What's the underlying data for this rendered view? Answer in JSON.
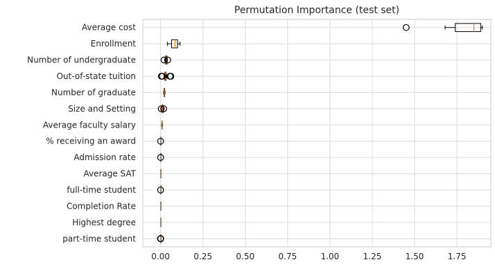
{
  "chart_data": {
    "type": "boxplot",
    "orientation": "horizontal",
    "title": "Permutation Importance (test set)",
    "xlabel": "",
    "ylabel": "",
    "xlim": [
      -0.105,
      1.95
    ],
    "xticks": [
      0.0,
      0.25,
      0.5,
      0.75,
      1.0,
      1.25,
      1.5,
      1.75
    ],
    "xtick_labels": [
      "0.00",
      "0.25",
      "0.50",
      "0.75",
      "1.00",
      "1.25",
      "1.50",
      "1.75"
    ],
    "grid": true,
    "colors": {
      "box": "#000000",
      "median": "#ff7f0e",
      "flier": "#000000",
      "grid": "#dcdcdc",
      "spine": "#cccccc",
      "text": "#262626"
    },
    "categories": [
      "Average cost",
      "Enrollment",
      "Number of undergraduate",
      "Out-of-state tuition",
      "Number of graduate",
      "Size and Setting",
      "Average faculty salary",
      "% receiving an award",
      "Admission rate",
      "Average SAT",
      "full-time student",
      "Completion Rate",
      "Highest degree",
      "part-time student"
    ],
    "boxes": [
      {
        "whislo": 1.68,
        "q1": 1.74,
        "med": 1.85,
        "q3": 1.89,
        "whishi": 1.9,
        "fliers": [
          1.45
        ]
      },
      {
        "whislo": 0.04,
        "q1": 0.065,
        "med": 0.085,
        "q3": 0.1,
        "whishi": 0.115,
        "fliers": []
      },
      {
        "whislo": 0.025,
        "q1": 0.03,
        "med": 0.035,
        "q3": 0.038,
        "whishi": 0.04,
        "fliers": [
          0.02,
          0.042
        ]
      },
      {
        "whislo": 0.02,
        "q1": 0.025,
        "med": 0.028,
        "q3": 0.032,
        "whishi": 0.035,
        "fliers": [
          0.005,
          0.01,
          0.055,
          0.06
        ]
      },
      {
        "whislo": 0.018,
        "q1": 0.02,
        "med": 0.022,
        "q3": 0.024,
        "whishi": 0.026,
        "fliers": []
      },
      {
        "whislo": 0.008,
        "q1": 0.01,
        "med": 0.012,
        "q3": 0.014,
        "whishi": 0.016,
        "fliers": [
          0.004,
          0.018
        ]
      },
      {
        "whislo": 0.006,
        "q1": 0.008,
        "med": 0.009,
        "q3": 0.01,
        "whishi": 0.011,
        "fliers": []
      },
      {
        "whislo": 0.0,
        "q1": 0.0,
        "med": 0.0,
        "q3": 0.0,
        "whishi": 0.0,
        "fliers": [
          0.0
        ]
      },
      {
        "whislo": 0.0,
        "q1": 0.0,
        "med": 0.0,
        "q3": 0.0,
        "whishi": 0.0,
        "fliers": [
          0.0
        ]
      },
      {
        "whislo": 0.0,
        "q1": 0.0,
        "med": 0.0,
        "q3": 0.0,
        "whishi": 0.0,
        "fliers": []
      },
      {
        "whislo": 0.0,
        "q1": 0.0,
        "med": 0.0,
        "q3": 0.0,
        "whishi": 0.0,
        "fliers": [
          0.0
        ]
      },
      {
        "whislo": 0.0,
        "q1": 0.0,
        "med": 0.0,
        "q3": 0.0,
        "whishi": 0.0,
        "fliers": []
      },
      {
        "whislo": 0.0,
        "q1": 0.0,
        "med": 0.0,
        "q3": 0.0,
        "whishi": 0.0,
        "fliers": []
      },
      {
        "whislo": 0.0,
        "q1": 0.0,
        "med": 0.0,
        "q3": 0.0,
        "whishi": 0.0,
        "fliers": [
          -0.001,
          0.0,
          0.001
        ]
      }
    ]
  }
}
